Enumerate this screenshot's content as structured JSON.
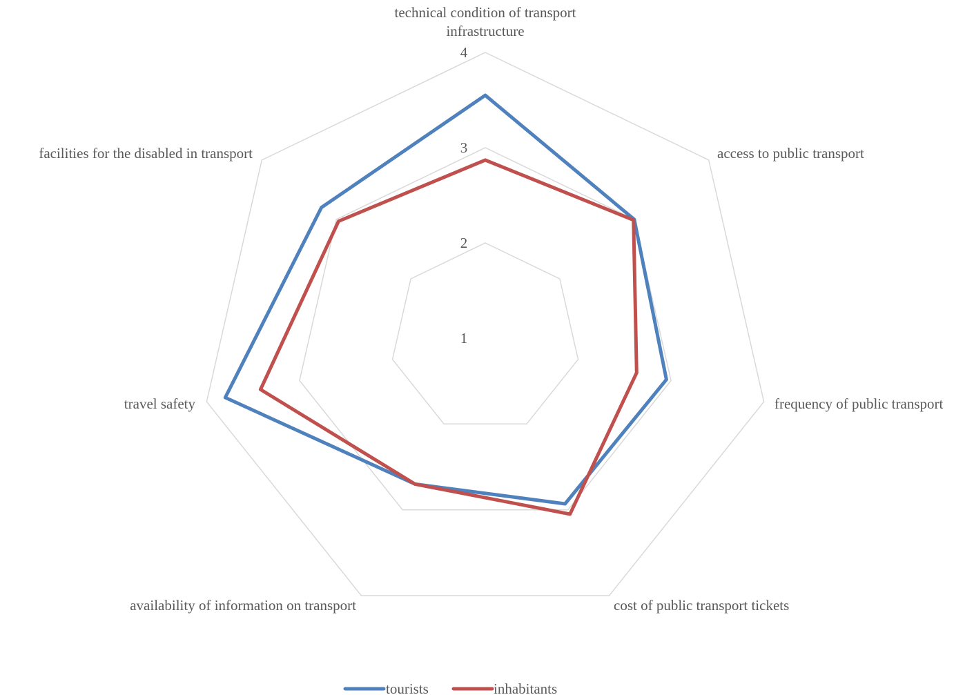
{
  "chart_data": {
    "type": "radar",
    "categories": [
      [
        "technical condition of transport",
        "infrastructure"
      ],
      [
        "access to public transport"
      ],
      [
        "frequency of public transport"
      ],
      [
        "cost of public transport tickets"
      ],
      [
        "availability of information on transport"
      ],
      [
        "travel safety"
      ],
      [
        "facilities for the disabled in transport"
      ]
    ],
    "axis": {
      "min": 1,
      "max": 4,
      "ticks": [
        "1",
        "2",
        "3",
        "4"
      ]
    },
    "grid": true,
    "legend": "bottom",
    "series": [
      {
        "name": "tourists",
        "color": "#4F81BD",
        "values": [
          3.55,
          3.0,
          2.95,
          2.93,
          2.7,
          3.8,
          3.2
        ]
      },
      {
        "name": "inhabitants",
        "color": "#C0504D",
        "values": [
          2.87,
          2.99,
          2.63,
          3.05,
          2.7,
          3.42,
          2.97
        ]
      }
    ]
  }
}
